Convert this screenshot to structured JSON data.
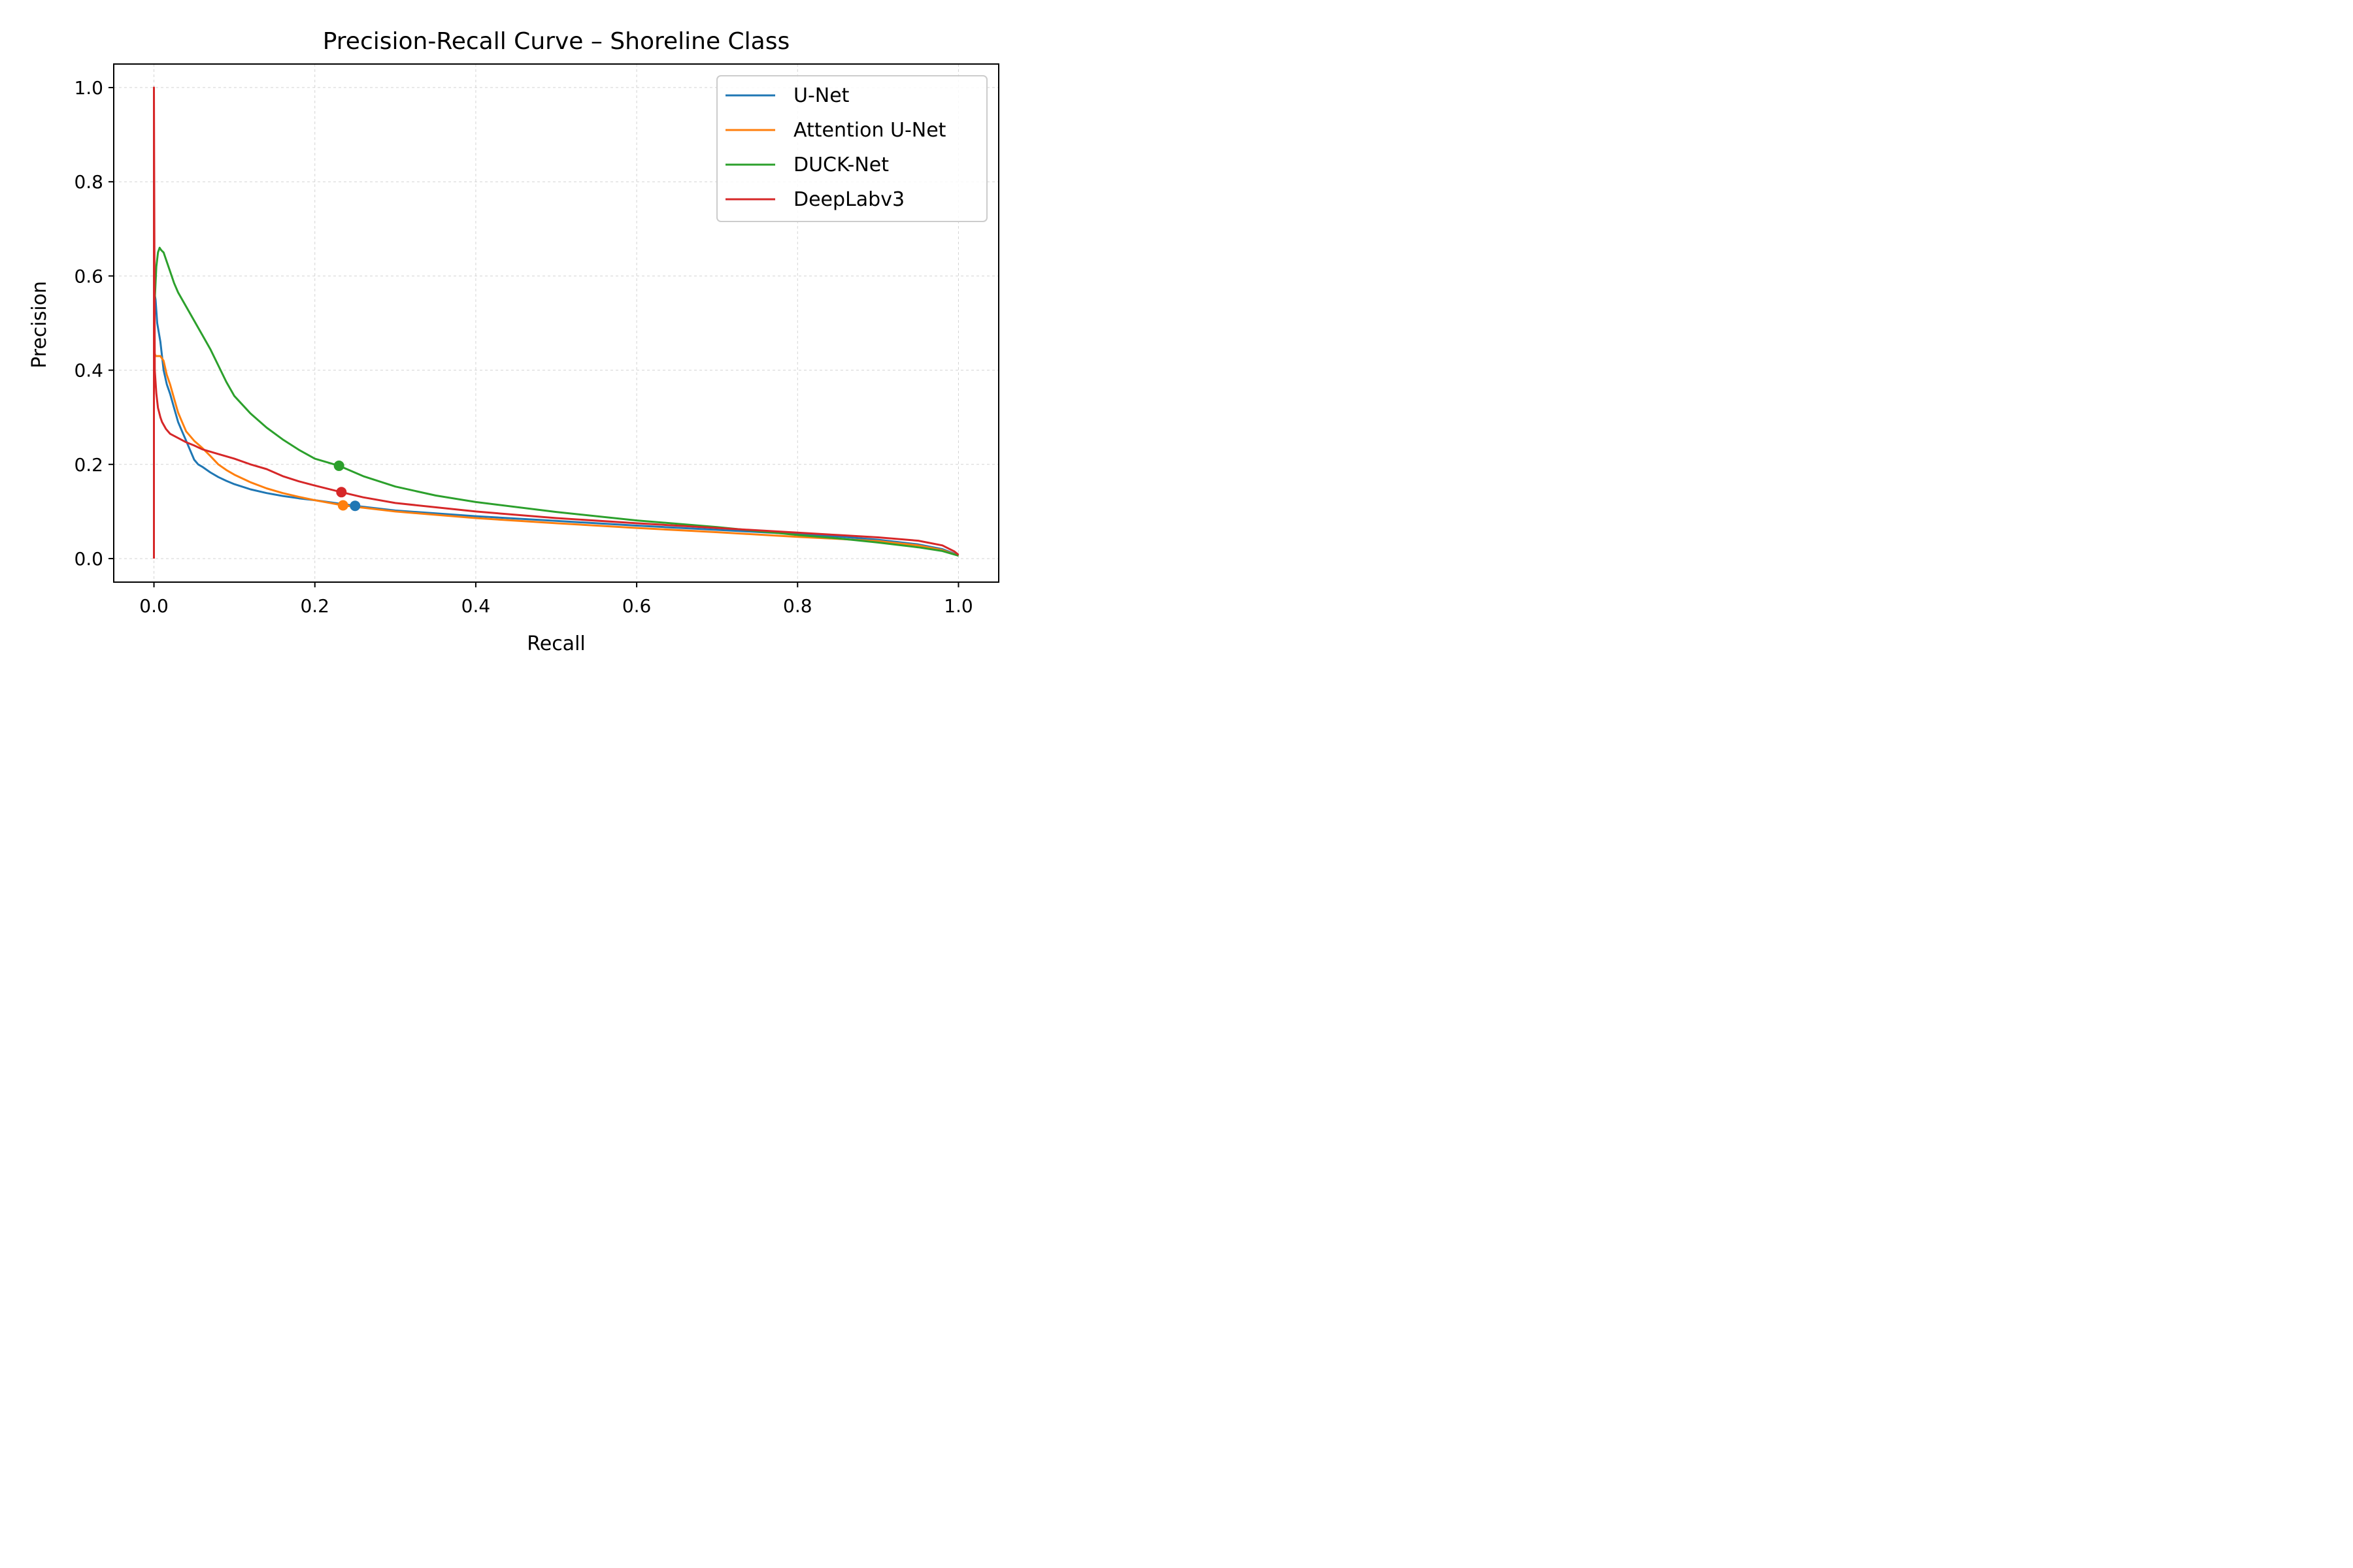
{
  "chart_data": {
    "type": "line",
    "title": "Precision-Recall Curve – Shoreline Class",
    "xlabel": "Recall",
    "ylabel": "Precision",
    "xlim": [
      -0.05,
      1.05
    ],
    "ylim": [
      -0.05,
      1.05
    ],
    "xticks": [
      0.0,
      0.2,
      0.4,
      0.6,
      0.8,
      1.0
    ],
    "yticks": [
      0.0,
      0.2,
      0.4,
      0.6,
      0.8,
      1.0
    ],
    "xtick_labels": [
      "0.0",
      "0.2",
      "0.4",
      "0.6",
      "0.8",
      "1.0"
    ],
    "ytick_labels": [
      "0.0",
      "0.2",
      "0.4",
      "0.6",
      "0.8",
      "1.0"
    ],
    "grid": true,
    "legend_position": "top-right",
    "series": [
      {
        "name": "U-Net",
        "color": "#1f77b4",
        "x": [
          0.0,
          0.002,
          0.004,
          0.008,
          0.012,
          0.016,
          0.02,
          0.025,
          0.03,
          0.035,
          0.04,
          0.045,
          0.05,
          0.055,
          0.06,
          0.07,
          0.08,
          0.09,
          0.1,
          0.12,
          0.14,
          0.16,
          0.18,
          0.2,
          0.25,
          0.3,
          0.4,
          0.5,
          0.6,
          0.7,
          0.8,
          0.85,
          0.9,
          0.95,
          0.98,
          1.0
        ],
        "y": [
          0.57,
          0.55,
          0.5,
          0.46,
          0.4,
          0.37,
          0.35,
          0.32,
          0.29,
          0.27,
          0.25,
          0.23,
          0.21,
          0.2,
          0.195,
          0.183,
          0.173,
          0.165,
          0.158,
          0.147,
          0.139,
          0.133,
          0.128,
          0.124,
          0.112,
          0.102,
          0.09,
          0.08,
          0.07,
          0.061,
          0.052,
          0.047,
          0.04,
          0.03,
          0.02,
          0.007
        ],
        "marker": {
          "x": 0.25,
          "y": 0.112
        }
      },
      {
        "name": "Attention U-Net",
        "color": "#ff7f0e",
        "x": [
          0.0,
          0.002,
          0.004,
          0.008,
          0.012,
          0.016,
          0.02,
          0.025,
          0.03,
          0.035,
          0.04,
          0.05,
          0.06,
          0.07,
          0.08,
          0.09,
          0.1,
          0.12,
          0.14,
          0.16,
          0.18,
          0.2,
          0.235,
          0.3,
          0.4,
          0.5,
          0.6,
          0.7,
          0.8,
          0.85,
          0.9,
          0.95,
          0.98,
          1.0
        ],
        "y": [
          0.44,
          0.43,
          0.43,
          0.43,
          0.42,
          0.39,
          0.37,
          0.34,
          0.31,
          0.29,
          0.27,
          0.25,
          0.235,
          0.218,
          0.2,
          0.188,
          0.178,
          0.162,
          0.149,
          0.139,
          0.131,
          0.124,
          0.113,
          0.1,
          0.086,
          0.075,
          0.065,
          0.056,
          0.046,
          0.042,
          0.037,
          0.028,
          0.018,
          0.006
        ],
        "marker": {
          "x": 0.235,
          "y": 0.113
        }
      },
      {
        "name": "DUCK-Net",
        "color": "#2ca02c",
        "x": [
          0.001,
          0.003,
          0.005,
          0.007,
          0.009,
          0.012,
          0.015,
          0.02,
          0.025,
          0.03,
          0.04,
          0.05,
          0.06,
          0.07,
          0.08,
          0.09,
          0.1,
          0.12,
          0.14,
          0.16,
          0.18,
          0.2,
          0.23,
          0.26,
          0.3,
          0.35,
          0.4,
          0.5,
          0.6,
          0.7,
          0.8,
          0.85,
          0.9,
          0.95,
          0.98,
          1.0
        ],
        "y": [
          0.55,
          0.62,
          0.65,
          0.66,
          0.655,
          0.65,
          0.635,
          0.61,
          0.585,
          0.565,
          0.535,
          0.505,
          0.475,
          0.445,
          0.41,
          0.375,
          0.345,
          0.308,
          0.278,
          0.253,
          0.231,
          0.212,
          0.197,
          0.175,
          0.153,
          0.134,
          0.12,
          0.099,
          0.081,
          0.067,
          0.05,
          0.043,
          0.034,
          0.024,
          0.016,
          0.006
        ],
        "marker": {
          "x": 0.23,
          "y": 0.197
        }
      },
      {
        "name": "DeepLabv3",
        "color": "#d62728",
        "x": [
          0.0,
          0.0,
          0.001,
          0.003,
          0.005,
          0.008,
          0.01,
          0.015,
          0.02,
          0.03,
          0.04,
          0.05,
          0.06,
          0.08,
          0.1,
          0.12,
          0.14,
          0.16,
          0.18,
          0.2,
          0.233,
          0.26,
          0.3,
          0.4,
          0.5,
          0.6,
          0.7,
          0.8,
          0.85,
          0.9,
          0.95,
          0.98,
          0.995,
          1.0
        ],
        "y": [
          0.0,
          1.0,
          0.4,
          0.35,
          0.32,
          0.3,
          0.29,
          0.275,
          0.265,
          0.256,
          0.247,
          0.24,
          0.232,
          0.222,
          0.212,
          0.2,
          0.19,
          0.175,
          0.164,
          0.155,
          0.141,
          0.13,
          0.118,
          0.1,
          0.086,
          0.075,
          0.065,
          0.055,
          0.05,
          0.045,
          0.038,
          0.028,
          0.015,
          0.008
        ],
        "marker": {
          "x": 0.233,
          "y": 0.141
        }
      }
    ]
  }
}
